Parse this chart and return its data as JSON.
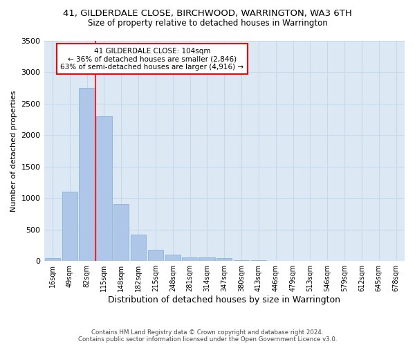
{
  "title_line1": "41, GILDERDALE CLOSE, BIRCHWOOD, WARRINGTON, WA3 6TH",
  "title_line2": "Size of property relative to detached houses in Warrington",
  "xlabel": "Distribution of detached houses by size in Warrington",
  "ylabel": "Number of detached properties",
  "bar_color": "#aec6e8",
  "bar_edge_color": "#7aadd4",
  "categories": [
    "16sqm",
    "49sqm",
    "82sqm",
    "115sqm",
    "148sqm",
    "182sqm",
    "215sqm",
    "248sqm",
    "281sqm",
    "314sqm",
    "347sqm",
    "380sqm",
    "413sqm",
    "446sqm",
    "479sqm",
    "513sqm",
    "546sqm",
    "579sqm",
    "612sqm",
    "645sqm",
    "678sqm"
  ],
  "values": [
    45,
    1100,
    2750,
    2300,
    900,
    420,
    175,
    100,
    60,
    55,
    45,
    10,
    8,
    5,
    3,
    2,
    1,
    0,
    0,
    0,
    0
  ],
  "ylim": [
    0,
    3500
  ],
  "yticks": [
    0,
    500,
    1000,
    1500,
    2000,
    2500,
    3000,
    3500
  ],
  "annot_line1": "41 GILDERDALE CLOSE: 104sqm",
  "annot_line2": "← 36% of detached houses are smaller (2,846)",
  "annot_line3": "63% of semi-detached houses are larger (4,916) →",
  "annotation_box_color": "white",
  "annotation_box_edge_color": "red",
  "vline_color": "red",
  "vline_x_index": 2.5,
  "plot_bg_color": "#dce9f5",
  "grid_color": "#c5d8ee",
  "footer_line1": "Contains HM Land Registry data © Crown copyright and database right 2024.",
  "footer_line2": "Contains public sector information licensed under the Open Government Licence v3.0."
}
